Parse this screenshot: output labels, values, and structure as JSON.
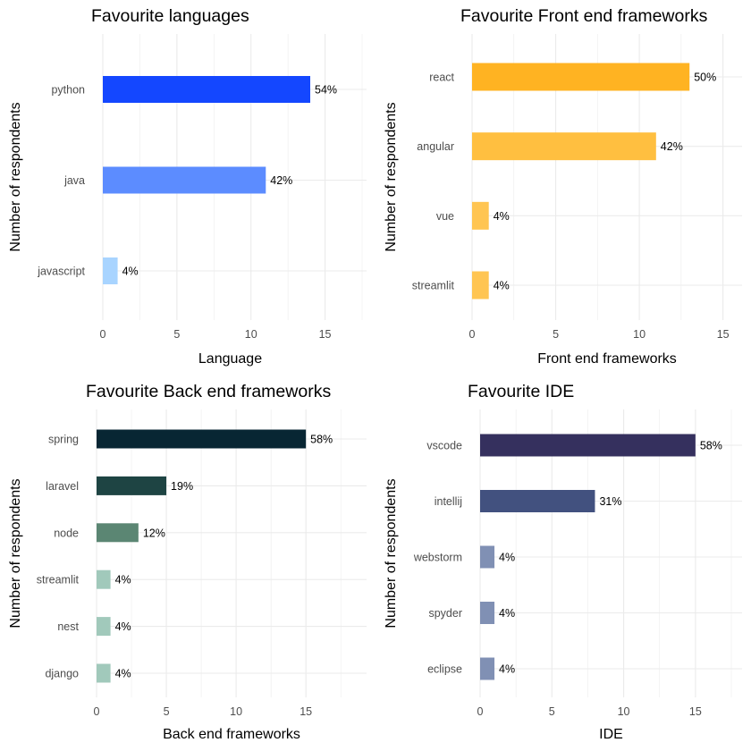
{
  "chart_data": [
    {
      "type": "bar",
      "orientation": "horizontal",
      "title": "Favourite languages",
      "xlabel": "Language",
      "ylabel": "Number of respondents",
      "categories": [
        "python",
        "java",
        "javascript"
      ],
      "values": [
        14,
        11,
        1
      ],
      "labels": [
        "54%",
        "42%",
        "4%"
      ],
      "colors": [
        "#1447ff",
        "#5c8cff",
        "#a8d4ff"
      ],
      "xlim": [
        0,
        17.5
      ],
      "xticks": [
        0,
        5,
        10,
        15
      ],
      "grid": true
    },
    {
      "type": "bar",
      "orientation": "horizontal",
      "title": "Favourite Front end frameworks",
      "xlabel": "Front end frameworks",
      "ylabel": "Number of respondents",
      "categories": [
        "react",
        "angular",
        "vue",
        "streamlit"
      ],
      "values": [
        13,
        11,
        1,
        1
      ],
      "labels": [
        "50%",
        "42%",
        "4%",
        "4%"
      ],
      "colors": [
        "#ffb322",
        "#ffbf40",
        "#ffc552",
        "#ffc552"
      ],
      "xlim": [
        0,
        15.5
      ],
      "xticks": [
        0,
        5,
        10,
        15
      ],
      "grid": true
    },
    {
      "type": "bar",
      "orientation": "horizontal",
      "title": "Favourite Back end frameworks",
      "xlabel": "Back end frameworks",
      "ylabel": "Number of respondents",
      "categories": [
        "spring",
        "laravel",
        "node",
        "streamlit",
        "nest",
        "django"
      ],
      "values": [
        15,
        5,
        3,
        1,
        1,
        1
      ],
      "labels": [
        "58%",
        "19%",
        "12%",
        "4%",
        "4%",
        "4%"
      ],
      "colors": [
        "#082633",
        "#1e4443",
        "#5b8673",
        "#a1c9bb",
        "#a1c9bb",
        "#a1c9bb"
      ],
      "xlim": [
        0,
        18
      ],
      "xticks": [
        0,
        5,
        10,
        15
      ],
      "grid": true
    },
    {
      "type": "bar",
      "orientation": "horizontal",
      "title": "Favourite IDE",
      "xlabel": "IDE",
      "ylabel": "Number of respondents",
      "categories": [
        "vscode",
        "intellij",
        "webstorm",
        "spyder",
        "eclipse"
      ],
      "values": [
        15,
        8,
        1,
        1,
        1
      ],
      "labels": [
        "58%",
        "31%",
        "4%",
        "4%",
        "4%"
      ],
      "colors": [
        "#35305e",
        "#42517f",
        "#8090b4",
        "#8090b4",
        "#8090b4"
      ],
      "xlim": [
        0,
        17.5
      ],
      "xticks": [
        0,
        5,
        10,
        15
      ],
      "grid": true
    }
  ]
}
